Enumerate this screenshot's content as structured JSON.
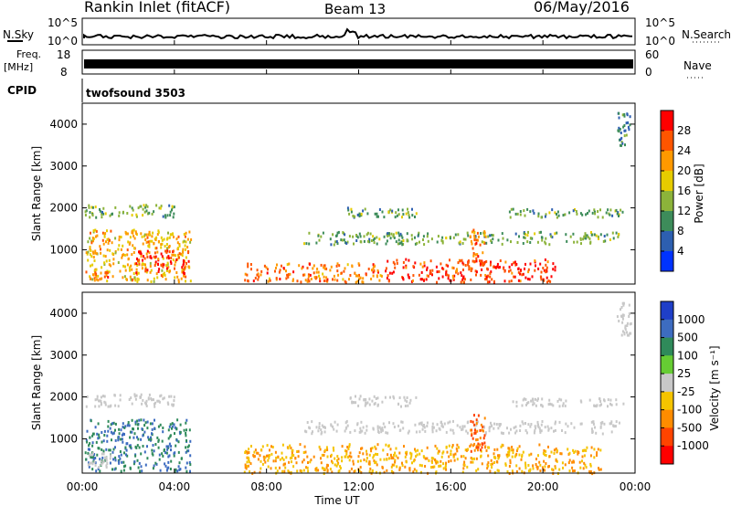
{
  "header": {
    "title": "Rankin Inlet (fitACF)",
    "beam": "Beam 13",
    "date": "06/May/2016"
  },
  "top_panels": {
    "nsky_label": "N.Sky",
    "nsearch_label": "N.Search",
    "nsky_ticks": [
      "10^5",
      "10^0"
    ],
    "freq_label_1": "Freq.",
    "freq_label_2": "[MHz]",
    "freq_ticks": [
      "18",
      "8"
    ],
    "nave_label": "Nave",
    "nave_ticks": [
      "60",
      "0"
    ],
    "cpid_label": "CPID",
    "cpid_value": "twofsound 3503"
  },
  "power_panel": {
    "ylabel": "Slant Range [km]",
    "colorbar_label": "Power [dB]",
    "colorbar_ticks": [
      "28",
      "24",
      "20",
      "16",
      "12",
      "8",
      "4"
    ],
    "colors": [
      "#ff0000",
      "#ff5500",
      "#ff9900",
      "#e6cc00",
      "#8cb33a",
      "#3d8c5a",
      "#2d5fb0",
      "#0033ff"
    ]
  },
  "velocity_panel": {
    "ylabel": "Slant Range [km]",
    "colorbar_label": "Velocity [m s⁻¹]",
    "colorbar_ticks": [
      "1000",
      "500",
      "100",
      "25",
      "-25",
      "-100",
      "-500",
      "-1000"
    ],
    "colors": [
      "#1f3fc8",
      "#3d6cc0",
      "#2f8a5a",
      "#66cc33",
      "#c8c8c8",
      "#f5c400",
      "#ff8c00",
      "#ff4400",
      "#ff0000"
    ]
  },
  "x_axis": {
    "label": "Time UT",
    "ticks": [
      "00:00",
      "04:00",
      "08:00",
      "12:00",
      "16:00",
      "20:00",
      "00:00"
    ]
  },
  "chart_data": {
    "type": "heatmap",
    "title": "Rankin Inlet (fitACF)",
    "subtitle": "Beam 13",
    "date": "06/May/2016",
    "xlabel": "Time UT",
    "ylabel": "Slant Range [km]",
    "x_ticks": [
      "00:00",
      "04:00",
      "08:00",
      "12:00",
      "16:00",
      "20:00",
      "00:00"
    ],
    "y_ticks": [
      1000,
      2000,
      3000,
      4000
    ],
    "xlim_hours": [
      0,
      24
    ],
    "ylim_km": [
      180,
      4500
    ],
    "panels": [
      {
        "name": "Power [dB]",
        "levels": [
          4,
          8,
          12,
          16,
          20,
          24,
          28
        ],
        "regions": [
          {
            "t0": 0.1,
            "t1": 4.7,
            "r0": 250,
            "r1": 1500,
            "level": 20
          },
          {
            "t0": 2.3,
            "t1": 4.6,
            "r0": 450,
            "r1": 1000,
            "level": 28
          },
          {
            "t0": 0.1,
            "t1": 4.0,
            "r0": 1800,
            "r1": 2100,
            "level": 12
          },
          {
            "t0": 0.3,
            "t1": 1.1,
            "r0": 250,
            "r1": 500,
            "level": 24
          },
          {
            "t0": 9.6,
            "t1": 23.3,
            "r0": 1150,
            "r1": 1450,
            "level": 12
          },
          {
            "t0": 13.0,
            "t1": 20.5,
            "r0": 250,
            "r1": 800,
            "level": 28
          },
          {
            "t0": 16.8,
            "t1": 17.5,
            "r0": 700,
            "r1": 1500,
            "level": 24
          },
          {
            "t0": 11.5,
            "t1": 14.5,
            "r0": 1800,
            "r1": 2050,
            "level": 12
          },
          {
            "t0": 18.5,
            "t1": 23.5,
            "r0": 1800,
            "r1": 2000,
            "level": 12
          },
          {
            "t0": 7.0,
            "t1": 13.0,
            "r0": 250,
            "r1": 700,
            "level": 24
          },
          {
            "t0": 23.2,
            "t1": 23.8,
            "r0": 3500,
            "r1": 4300,
            "level": 8
          }
        ]
      },
      {
        "name": "Velocity [m s⁻¹]",
        "levels": [
          -1000,
          -500,
          -100,
          -25,
          25,
          100,
          500,
          1000
        ],
        "regions": [
          {
            "t0": 0.1,
            "t1": 4.7,
            "r0": 250,
            "r1": 1500,
            "level": 500
          },
          {
            "t0": 0.1,
            "t1": 4.0,
            "r0": 1800,
            "r1": 2100,
            "level": 0
          },
          {
            "t0": 0.2,
            "t1": 1.2,
            "r0": 350,
            "r1": 700,
            "level": 0
          },
          {
            "t0": 9.6,
            "t1": 23.3,
            "r0": 1150,
            "r1": 1450,
            "level": 0
          },
          {
            "t0": 7.0,
            "t1": 22.5,
            "r0": 200,
            "r1": 900,
            "level": -100
          },
          {
            "t0": 16.8,
            "t1": 17.5,
            "r0": 700,
            "r1": 1600,
            "level": -500
          },
          {
            "t0": 11.5,
            "t1": 14.5,
            "r0": 1800,
            "r1": 2050,
            "level": 0
          },
          {
            "t0": 18.5,
            "t1": 23.5,
            "r0": 1800,
            "r1": 2000,
            "level": 0
          },
          {
            "t0": 23.2,
            "t1": 23.8,
            "r0": 3500,
            "r1": 4300,
            "level": 0
          }
        ]
      }
    ]
  }
}
